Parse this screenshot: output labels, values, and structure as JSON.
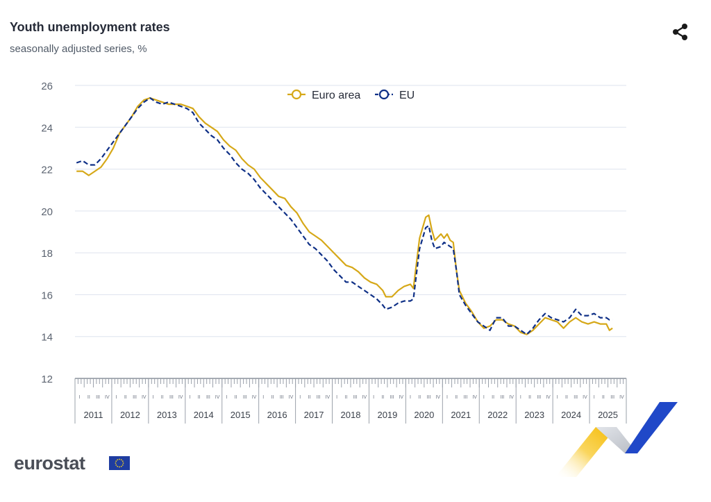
{
  "header": {
    "title": "Youth unemployment rates",
    "subtitle": "seasonally adjusted series, %"
  },
  "icons": {
    "share": "share-icon",
    "flag": "eu-flag-icon"
  },
  "branding": {
    "logo_text": "eurostat"
  },
  "colors": {
    "euro_area": "#d6a818",
    "eu": "#0e2f86",
    "grid": "#dde3ee",
    "axis_text": "#5b6370",
    "deco_yellow": "#f7c41a",
    "deco_blue": "#2048c8",
    "deco_grey": "#c8ccd2"
  },
  "chart_data": {
    "type": "line",
    "title": "Youth unemployment rates",
    "subtitle": "seasonally adjusted series, %",
    "xlabel": "",
    "ylabel": "",
    "ylim": [
      12,
      26
    ],
    "yticks": [
      12,
      14,
      16,
      18,
      20,
      22,
      24,
      26
    ],
    "x_start": "2011-01",
    "x_end": "2025-12",
    "year_labels": [
      "2011",
      "2012",
      "2013",
      "2014",
      "2015",
      "2016",
      "2017",
      "2018",
      "2019",
      "2020",
      "2021",
      "2022",
      "2023",
      "2024",
      "2025"
    ],
    "quarter_labels": [
      "I",
      "II",
      "III",
      "IV"
    ],
    "legend": {
      "position": "top-center"
    },
    "grid": true,
    "series": [
      {
        "name": "Euro area",
        "style": "solid",
        "points": [
          [
            "2011-01",
            21.9
          ],
          [
            "2011-03",
            21.9
          ],
          [
            "2011-05",
            21.7
          ],
          [
            "2011-07",
            21.9
          ],
          [
            "2011-09",
            22.1
          ],
          [
            "2011-11",
            22.5
          ],
          [
            "2012-01",
            23.0
          ],
          [
            "2012-03",
            23.7
          ],
          [
            "2012-05",
            24.1
          ],
          [
            "2012-07",
            24.5
          ],
          [
            "2012-09",
            25.0
          ],
          [
            "2012-11",
            25.3
          ],
          [
            "2013-01",
            25.4
          ],
          [
            "2013-03",
            25.3
          ],
          [
            "2013-05",
            25.2
          ],
          [
            "2013-07",
            25.1
          ],
          [
            "2013-09",
            25.1
          ],
          [
            "2013-11",
            25.1
          ],
          [
            "2014-01",
            25.0
          ],
          [
            "2014-03",
            24.9
          ],
          [
            "2014-05",
            24.5
          ],
          [
            "2014-07",
            24.2
          ],
          [
            "2014-09",
            24.0
          ],
          [
            "2014-11",
            23.8
          ],
          [
            "2015-01",
            23.4
          ],
          [
            "2015-03",
            23.1
          ],
          [
            "2015-05",
            22.9
          ],
          [
            "2015-07",
            22.5
          ],
          [
            "2015-09",
            22.2
          ],
          [
            "2015-11",
            22.0
          ],
          [
            "2016-01",
            21.6
          ],
          [
            "2016-03",
            21.3
          ],
          [
            "2016-05",
            21.0
          ],
          [
            "2016-07",
            20.7
          ],
          [
            "2016-09",
            20.6
          ],
          [
            "2016-11",
            20.2
          ],
          [
            "2017-01",
            19.9
          ],
          [
            "2017-03",
            19.4
          ],
          [
            "2017-05",
            19.0
          ],
          [
            "2017-07",
            18.8
          ],
          [
            "2017-09",
            18.6
          ],
          [
            "2017-11",
            18.3
          ],
          [
            "2018-01",
            18.0
          ],
          [
            "2018-03",
            17.7
          ],
          [
            "2018-05",
            17.4
          ],
          [
            "2018-07",
            17.3
          ],
          [
            "2018-09",
            17.1
          ],
          [
            "2018-11",
            16.8
          ],
          [
            "2019-01",
            16.6
          ],
          [
            "2019-03",
            16.5
          ],
          [
            "2019-05",
            16.2
          ],
          [
            "2019-06",
            15.9
          ],
          [
            "2019-08",
            15.9
          ],
          [
            "2019-10",
            16.2
          ],
          [
            "2019-12",
            16.4
          ],
          [
            "2020-02",
            16.5
          ],
          [
            "2020-03",
            16.3
          ],
          [
            "2020-04",
            17.5
          ],
          [
            "2020-05",
            18.7
          ],
          [
            "2020-07",
            19.7
          ],
          [
            "2020-08",
            19.8
          ],
          [
            "2020-09",
            19.1
          ],
          [
            "2020-10",
            18.6
          ],
          [
            "2020-12",
            18.9
          ],
          [
            "2021-01",
            18.7
          ],
          [
            "2021-02",
            18.9
          ],
          [
            "2021-03",
            18.6
          ],
          [
            "2021-04",
            18.5
          ],
          [
            "2021-05",
            17.2
          ],
          [
            "2021-06",
            16.2
          ],
          [
            "2021-08",
            15.6
          ],
          [
            "2021-10",
            15.2
          ],
          [
            "2021-12",
            14.7
          ],
          [
            "2022-02",
            14.4
          ],
          [
            "2022-04",
            14.5
          ],
          [
            "2022-06",
            14.8
          ],
          [
            "2022-08",
            14.8
          ],
          [
            "2022-10",
            14.6
          ],
          [
            "2022-12",
            14.5
          ],
          [
            "2023-02",
            14.2
          ],
          [
            "2023-04",
            14.1
          ],
          [
            "2023-06",
            14.3
          ],
          [
            "2023-08",
            14.6
          ],
          [
            "2023-10",
            14.9
          ],
          [
            "2023-12",
            14.8
          ],
          [
            "2024-02",
            14.7
          ],
          [
            "2024-04",
            14.4
          ],
          [
            "2024-06",
            14.7
          ],
          [
            "2024-08",
            14.9
          ],
          [
            "2024-10",
            14.7
          ],
          [
            "2024-12",
            14.6
          ],
          [
            "2025-02",
            14.7
          ],
          [
            "2025-04",
            14.6
          ],
          [
            "2025-06",
            14.6
          ],
          [
            "2025-07",
            14.3
          ],
          [
            "2025-08",
            14.4
          ]
        ]
      },
      {
        "name": "EU",
        "style": "dashed",
        "points": [
          [
            "2011-01",
            22.3
          ],
          [
            "2011-03",
            22.4
          ],
          [
            "2011-05",
            22.2
          ],
          [
            "2011-07",
            22.2
          ],
          [
            "2011-09",
            22.5
          ],
          [
            "2011-11",
            22.9
          ],
          [
            "2012-01",
            23.3
          ],
          [
            "2012-03",
            23.7
          ],
          [
            "2012-05",
            24.1
          ],
          [
            "2012-07",
            24.5
          ],
          [
            "2012-09",
            24.9
          ],
          [
            "2012-11",
            25.2
          ],
          [
            "2013-01",
            25.4
          ],
          [
            "2013-03",
            25.2
          ],
          [
            "2013-05",
            25.1
          ],
          [
            "2013-07",
            25.2
          ],
          [
            "2013-09",
            25.1
          ],
          [
            "2013-11",
            25.0
          ],
          [
            "2014-01",
            24.9
          ],
          [
            "2014-03",
            24.7
          ],
          [
            "2014-05",
            24.2
          ],
          [
            "2014-07",
            23.9
          ],
          [
            "2014-09",
            23.6
          ],
          [
            "2014-11",
            23.4
          ],
          [
            "2015-01",
            23.0
          ],
          [
            "2015-03",
            22.7
          ],
          [
            "2015-05",
            22.3
          ],
          [
            "2015-07",
            22.0
          ],
          [
            "2015-09",
            21.8
          ],
          [
            "2015-11",
            21.5
          ],
          [
            "2016-01",
            21.1
          ],
          [
            "2016-03",
            20.8
          ],
          [
            "2016-05",
            20.5
          ],
          [
            "2016-07",
            20.2
          ],
          [
            "2016-09",
            19.9
          ],
          [
            "2016-11",
            19.6
          ],
          [
            "2017-01",
            19.2
          ],
          [
            "2017-03",
            18.8
          ],
          [
            "2017-05",
            18.4
          ],
          [
            "2017-07",
            18.2
          ],
          [
            "2017-09",
            17.9
          ],
          [
            "2017-11",
            17.6
          ],
          [
            "2018-01",
            17.2
          ],
          [
            "2018-03",
            16.9
          ],
          [
            "2018-05",
            16.6
          ],
          [
            "2018-07",
            16.6
          ],
          [
            "2018-09",
            16.4
          ],
          [
            "2018-11",
            16.2
          ],
          [
            "2019-01",
            16.0
          ],
          [
            "2019-03",
            15.8
          ],
          [
            "2019-05",
            15.5
          ],
          [
            "2019-06",
            15.3
          ],
          [
            "2019-08",
            15.4
          ],
          [
            "2019-10",
            15.6
          ],
          [
            "2019-12",
            15.7
          ],
          [
            "2020-02",
            15.7
          ],
          [
            "2020-03",
            15.8
          ],
          [
            "2020-04",
            17.0
          ],
          [
            "2020-05",
            18.2
          ],
          [
            "2020-07",
            19.2
          ],
          [
            "2020-08",
            19.3
          ],
          [
            "2020-09",
            18.6
          ],
          [
            "2020-10",
            18.2
          ],
          [
            "2020-12",
            18.3
          ],
          [
            "2021-01",
            18.5
          ],
          [
            "2021-02",
            18.4
          ],
          [
            "2021-03",
            18.3
          ],
          [
            "2021-04",
            18.2
          ],
          [
            "2021-05",
            17.2
          ],
          [
            "2021-06",
            16.0
          ],
          [
            "2021-08",
            15.5
          ],
          [
            "2021-10",
            15.1
          ],
          [
            "2021-12",
            14.7
          ],
          [
            "2022-02",
            14.5
          ],
          [
            "2022-04",
            14.3
          ],
          [
            "2022-06",
            14.9
          ],
          [
            "2022-08",
            14.9
          ],
          [
            "2022-10",
            14.5
          ],
          [
            "2022-12",
            14.5
          ],
          [
            "2023-02",
            14.3
          ],
          [
            "2023-04",
            14.1
          ],
          [
            "2023-06",
            14.4
          ],
          [
            "2023-08",
            14.8
          ],
          [
            "2023-10",
            15.1
          ],
          [
            "2023-12",
            14.9
          ],
          [
            "2024-02",
            14.8
          ],
          [
            "2024-04",
            14.7
          ],
          [
            "2024-06",
            14.9
          ],
          [
            "2024-08",
            15.3
          ],
          [
            "2024-10",
            15.0
          ],
          [
            "2024-12",
            15.0
          ],
          [
            "2025-02",
            15.1
          ],
          [
            "2025-04",
            14.9
          ],
          [
            "2025-06",
            14.9
          ],
          [
            "2025-07",
            14.8
          ],
          [
            "2025-08",
            14.8
          ]
        ]
      }
    ]
  }
}
